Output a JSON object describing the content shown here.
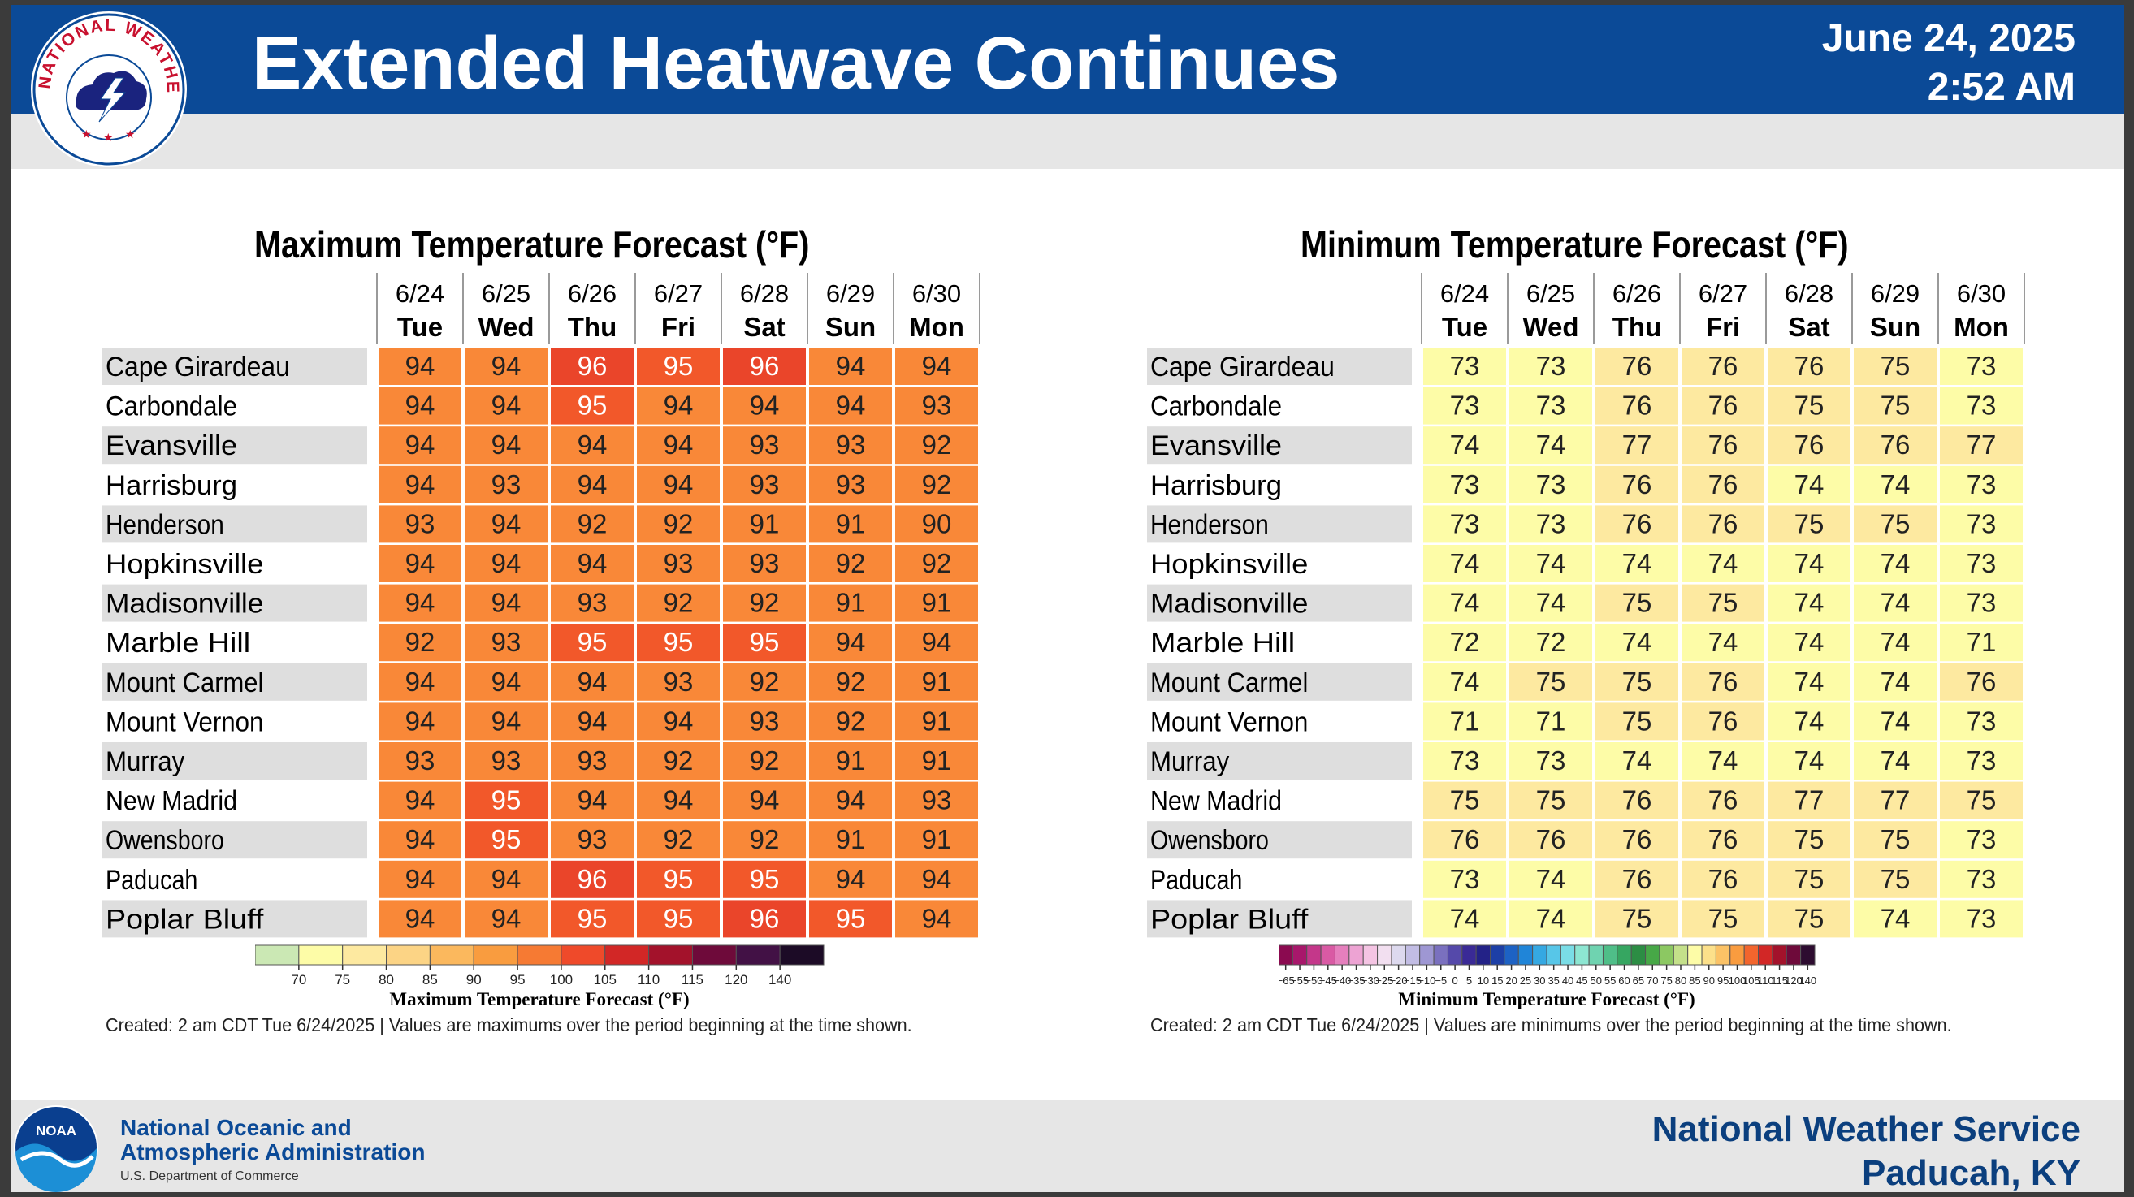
{
  "header": {
    "title": "Extended Heatwave Continues",
    "date": "June 24, 2025",
    "time": "2:52 AM",
    "logo_text": "NATIONAL WEATHER SERVICE"
  },
  "footer": {
    "noaa_line1": "National Oceanic and",
    "noaa_line2": "Atmospheric Administration",
    "noaa_dept": "U.S. Department of Commerce",
    "noaa_logo_text": "NOAA",
    "nws_line1": "National Weather Service",
    "nws_line2": "Paducah, KY"
  },
  "colors": {
    "header_bg": "#0b4a97",
    "subbar_bg": "#e6e6e6",
    "max_94": "#f98838",
    "max_95": "#f2582a",
    "max_96": "#ea452a",
    "min_light": "#fdfca7",
    "min_warm": "#fde9a0"
  },
  "chart_data": [
    {
      "type": "table",
      "title": "Maximum Temperature Forecast (°F)",
      "dates": [
        "6/24",
        "6/25",
        "6/26",
        "6/27",
        "6/28",
        "6/29",
        "6/30"
      ],
      "days": [
        "Tue",
        "Wed",
        "Thu",
        "Fri",
        "Sat",
        "Sun",
        "Mon"
      ],
      "locations": [
        "Cape Girardeau",
        "Carbondale",
        "Evansville",
        "Harrisburg",
        "Henderson",
        "Hopkinsville",
        "Madisonville",
        "Marble Hill",
        "Mount Carmel",
        "Mount Vernon",
        "Murray",
        "New Madrid",
        "Owensboro",
        "Paducah",
        "Poplar Bluff"
      ],
      "values": [
        [
          94,
          94,
          96,
          95,
          96,
          94,
          94
        ],
        [
          94,
          94,
          95,
          94,
          94,
          94,
          93
        ],
        [
          94,
          94,
          94,
          94,
          93,
          93,
          92
        ],
        [
          94,
          93,
          94,
          94,
          93,
          93,
          92
        ],
        [
          93,
          94,
          92,
          92,
          91,
          91,
          90
        ],
        [
          94,
          94,
          94,
          93,
          93,
          92,
          92
        ],
        [
          94,
          94,
          93,
          92,
          92,
          91,
          91
        ],
        [
          92,
          93,
          95,
          95,
          95,
          94,
          94
        ],
        [
          94,
          94,
          94,
          93,
          92,
          92,
          91
        ],
        [
          94,
          94,
          94,
          94,
          93,
          92,
          91
        ],
        [
          93,
          93,
          93,
          92,
          92,
          91,
          91
        ],
        [
          94,
          95,
          94,
          94,
          94,
          94,
          93
        ],
        [
          94,
          95,
          93,
          92,
          92,
          91,
          91
        ],
        [
          94,
          94,
          96,
          95,
          95,
          94,
          94
        ],
        [
          94,
          94,
          95,
          95,
          96,
          95,
          94
        ]
      ],
      "colorbar": {
        "ticks": [
          "70",
          "75",
          "80",
          "85",
          "90",
          "95",
          "100",
          "105",
          "110",
          "115",
          "120",
          "140"
        ],
        "colors": [
          "#cbe8b4",
          "#fdfca7",
          "#fde9a0",
          "#fcd485",
          "#fbb85d",
          "#f99c3f",
          "#f67a33",
          "#ef4a2a",
          "#d22726",
          "#a3122b",
          "#6e0a3a",
          "#421145",
          "#1c0b26"
        ],
        "label": "Maximum Temperature Forecast (°F)"
      },
      "created": "Created: 2 am CDT Tue 6/24/2025  |  Values are maximums over the period beginning at the time shown."
    },
    {
      "type": "table",
      "title": "Minimum Temperature Forecast (°F)",
      "dates": [
        "6/24",
        "6/25",
        "6/26",
        "6/27",
        "6/28",
        "6/29",
        "6/30"
      ],
      "days": [
        "Tue",
        "Wed",
        "Thu",
        "Fri",
        "Sat",
        "Sun",
        "Mon"
      ],
      "locations": [
        "Cape Girardeau",
        "Carbondale",
        "Evansville",
        "Harrisburg",
        "Henderson",
        "Hopkinsville",
        "Madisonville",
        "Marble Hill",
        "Mount Carmel",
        "Mount Vernon",
        "Murray",
        "New Madrid",
        "Owensboro",
        "Paducah",
        "Poplar Bluff"
      ],
      "values": [
        [
          73,
          73,
          76,
          76,
          76,
          75,
          73
        ],
        [
          73,
          73,
          76,
          76,
          75,
          75,
          73
        ],
        [
          74,
          74,
          77,
          76,
          76,
          76,
          77
        ],
        [
          73,
          73,
          76,
          76,
          74,
          74,
          73
        ],
        [
          73,
          73,
          76,
          76,
          75,
          75,
          73
        ],
        [
          74,
          74,
          74,
          74,
          74,
          74,
          73
        ],
        [
          74,
          74,
          75,
          75,
          74,
          74,
          73
        ],
        [
          72,
          72,
          74,
          74,
          74,
          74,
          71
        ],
        [
          74,
          75,
          75,
          76,
          74,
          74,
          76
        ],
        [
          71,
          71,
          75,
          76,
          74,
          74,
          73
        ],
        [
          73,
          73,
          74,
          74,
          74,
          74,
          73
        ],
        [
          75,
          75,
          76,
          76,
          77,
          77,
          75
        ],
        [
          76,
          76,
          76,
          76,
          75,
          75,
          73
        ],
        [
          73,
          74,
          76,
          76,
          75,
          75,
          73
        ],
        [
          74,
          74,
          75,
          75,
          75,
          74,
          73
        ]
      ],
      "colorbar": {
        "ticks": [
          "−65",
          "−55",
          "−50",
          "−45",
          "−40",
          "−35",
          "−30",
          "−25",
          "−20",
          "−15",
          "−10",
          "−5",
          "0",
          "5",
          "10",
          "15",
          "20",
          "25",
          "30",
          "35",
          "40",
          "45",
          "50",
          "55",
          "60",
          "65",
          "70",
          "75",
          "80",
          "85",
          "90",
          "95",
          "100",
          "105",
          "110",
          "115",
          "120",
          "140"
        ],
        "colors": [
          "#8b0a50",
          "#a8176b",
          "#c4378a",
          "#d95aa4",
          "#e57fbd",
          "#eda3d3",
          "#f4c4e3",
          "#f2dff0",
          "#ddd9ee",
          "#c2bde4",
          "#9e97d3",
          "#7a70bf",
          "#5549aa",
          "#3a2a96",
          "#232287",
          "#1d3fa6",
          "#1d62c4",
          "#2085d8",
          "#35a8e2",
          "#57c6e8",
          "#7adde6",
          "#8de6d2",
          "#6fd3b0",
          "#4fbe88",
          "#36a661",
          "#2c8d44",
          "#47a847",
          "#8cc862",
          "#c4e08a",
          "#fdfca7",
          "#fce08a",
          "#fbc266",
          "#f99c3f",
          "#f2652d",
          "#d22726",
          "#a3122b",
          "#6e0a3a",
          "#2d0c30"
        ],
        "label": "Minimum Temperature Forecast (°F)"
      },
      "created": "Created: 2 am CDT Tue 6/24/2025  |  Values are minimums over the period beginning at the time shown."
    }
  ]
}
